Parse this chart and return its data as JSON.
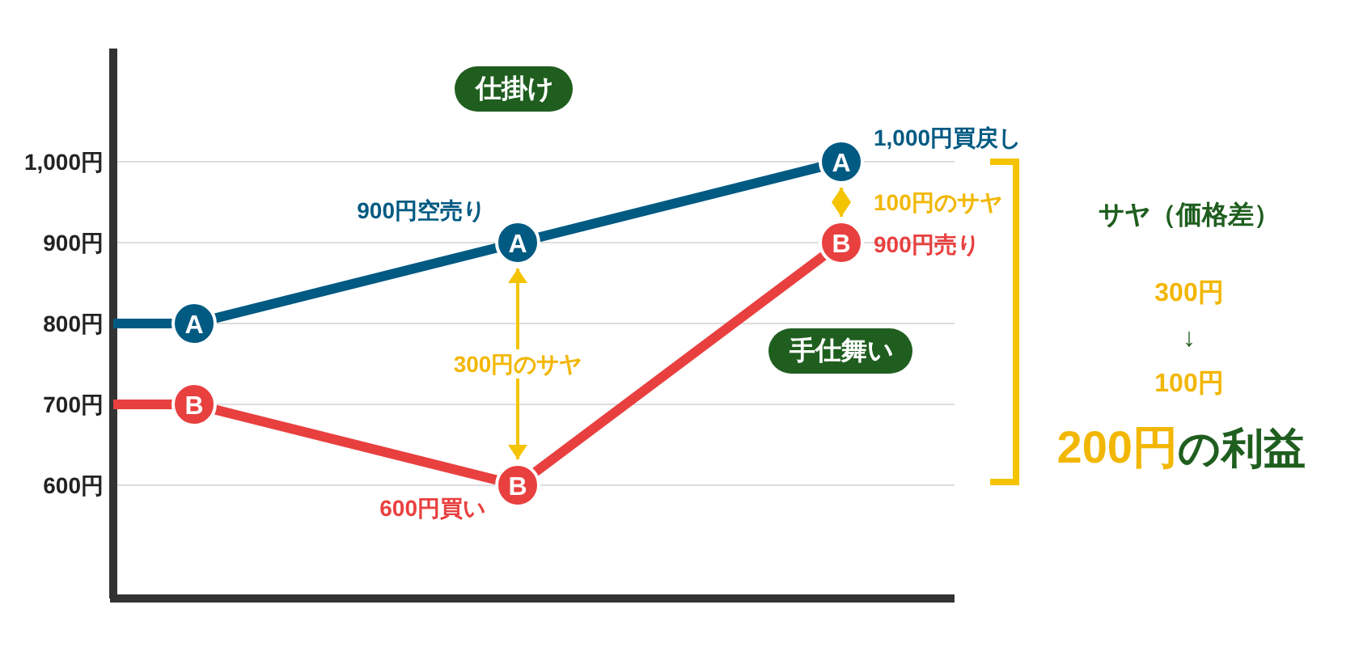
{
  "chart_data": {
    "type": "line",
    "categories": [
      null,
      null,
      null
    ],
    "ylim": [
      460,
      1140
    ],
    "yticks": [
      {
        "value": 600,
        "label": "600円"
      },
      {
        "value": 700,
        "label": "700円"
      },
      {
        "value": 800,
        "label": "800円"
      },
      {
        "value": 900,
        "label": "900円"
      },
      {
        "value": 1000,
        "label": "1,000円"
      }
    ],
    "grid": "y",
    "marker": "circle",
    "line_style": "solid",
    "series": [
      {
        "name": "A",
        "color": "#005a82",
        "values": [
          800,
          900,
          1000
        ]
      },
      {
        "name": "B",
        "color": "#e8403f",
        "values": [
          700,
          600,
          900
        ]
      }
    ],
    "annotations": [
      "仕掛け",
      "手仕舞い",
      "900円空売り",
      "1,000円買戻し",
      "100円のサヤ",
      "900円売り",
      "600円買い",
      "300円のサヤ",
      "サヤ（価格差）",
      "300円",
      "↓",
      "100円",
      "200円",
      "の利益"
    ]
  }
}
